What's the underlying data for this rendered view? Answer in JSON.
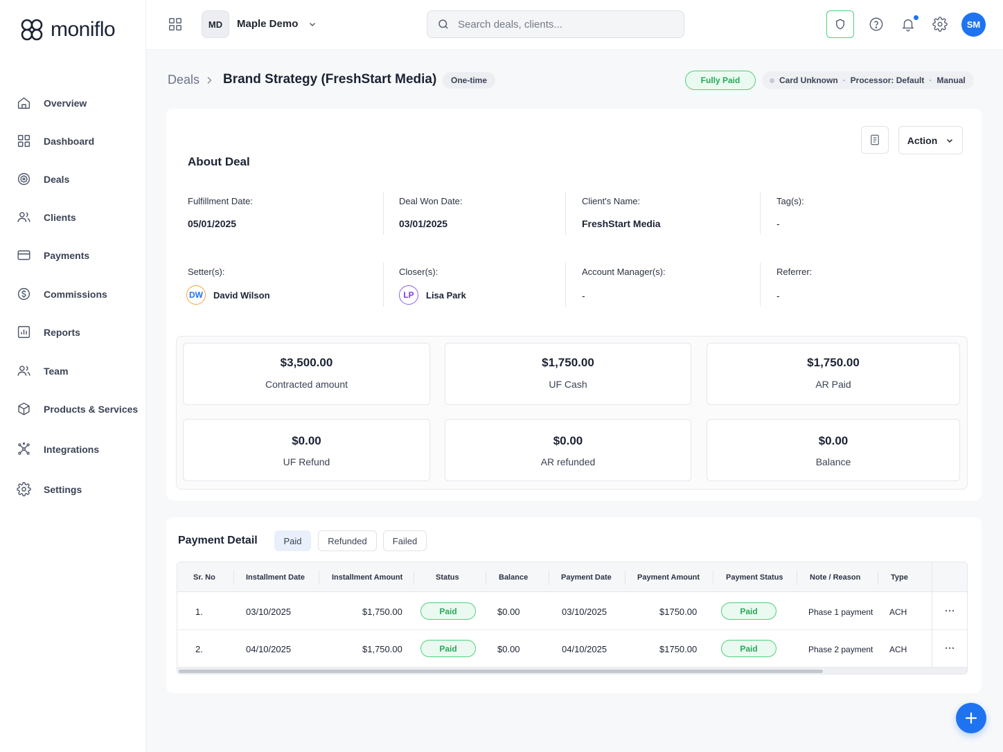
{
  "app": {
    "name": "moniflo"
  },
  "nav": {
    "items": [
      {
        "label": "Overview",
        "icon": "home-icon"
      },
      {
        "label": "Dashboard",
        "icon": "grid-icon"
      },
      {
        "label": "Deals",
        "icon": "target-icon"
      },
      {
        "label": "Clients",
        "icon": "users-icon"
      },
      {
        "label": "Payments",
        "icon": "card-icon"
      },
      {
        "label": "Commissions",
        "icon": "dollar-icon"
      },
      {
        "label": "Reports",
        "icon": "chart-icon"
      },
      {
        "label": "Team",
        "icon": "team-icon"
      },
      {
        "label": "Products & Services",
        "icon": "box-icon"
      },
      {
        "label": "Integrations",
        "icon": "integrations-icon"
      },
      {
        "label": "Settings",
        "icon": "gear-icon"
      }
    ]
  },
  "topbar": {
    "workspace_initials": "MD",
    "workspace_name": "Maple Demo",
    "search_placeholder": "Search deals, clients...",
    "user_initials": "SM"
  },
  "breadcrumb": {
    "parent": "Deals",
    "title": "Brand Strategy (FreshStart Media)",
    "type_chip": "One-time",
    "status_pill": "Fully Paid",
    "meta": [
      "Card Unknown",
      "Processor: Default",
      "Manual"
    ]
  },
  "about": {
    "title": "About Deal",
    "action_label": "Action",
    "fields": {
      "fulfillment_label": "Fulfillment Date:",
      "fulfillment_value": "05/01/2025",
      "won_label": "Deal Won Date:",
      "won_value": "03/01/2025",
      "client_label": "Client's Name:",
      "client_value": "FreshStart Media",
      "tags_label": "Tag(s):",
      "tags_value": "-",
      "setters_label": "Setter(s):",
      "setter_initials": "DW",
      "setter_name": "David Wilson",
      "closers_label": "Closer(s):",
      "closer_initials": "LP",
      "closer_name": "Lisa Park",
      "am_label": "Account Manager(s):",
      "am_value": "-",
      "referrer_label": "Referrer:",
      "referrer_value": "-"
    },
    "stats": [
      {
        "value": "$3,500.00",
        "label": "Contracted amount"
      },
      {
        "value": "$1,750.00",
        "label": "UF Cash"
      },
      {
        "value": "$1,750.00",
        "label": "AR Paid"
      },
      {
        "value": "$0.00",
        "label": "UF Refund"
      },
      {
        "value": "$0.00",
        "label": "AR refunded"
      },
      {
        "value": "$0.00",
        "label": "Balance"
      }
    ]
  },
  "payment": {
    "title": "Payment Detail",
    "tabs": [
      "Paid",
      "Refunded",
      "Failed"
    ],
    "active_tab": "Paid",
    "columns": [
      "Sr. No",
      "Installment Date",
      "Installment Amount",
      "Status",
      "Balance",
      "Payment Date",
      "Payment Amount",
      "Payment Status",
      "Note / Reason",
      "Type"
    ],
    "rows": [
      {
        "sr": "1.",
        "inst_date": "03/10/2025",
        "inst_amount": "$1,750.00",
        "status": "Paid",
        "balance": "$0.00",
        "pay_date": "03/10/2025",
        "pay_amount": "$1750.00",
        "pay_status": "Paid",
        "note": "Phase 1 payment",
        "type": "ACH"
      },
      {
        "sr": "2.",
        "inst_date": "04/10/2025",
        "inst_amount": "$1,750.00",
        "status": "Paid",
        "balance": "$0.00",
        "pay_date": "04/10/2025",
        "pay_amount": "$1750.00",
        "pay_status": "Paid",
        "note": "Phase 2 payment",
        "type": "ACH"
      }
    ]
  },
  "colors": {
    "accent": "#1e73f0",
    "success": "#27a85a",
    "success_border": "#4fcf7c"
  }
}
